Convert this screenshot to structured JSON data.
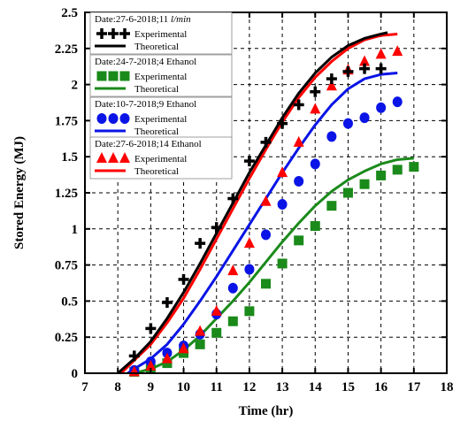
{
  "chart_data": {
    "type": "line",
    "xlabel": "Time (hr)",
    "ylabel": "Stored Energy (MJ)",
    "xlim": [
      7,
      18
    ],
    "ylim": [
      0,
      2.5
    ],
    "x_ticks": [
      "7",
      "8",
      "9",
      "10",
      "11",
      "12",
      "13",
      "14",
      "15",
      "16",
      "17",
      "18"
    ],
    "y_ticks": [
      "0",
      "0.25",
      "0.5",
      "0.75",
      "1",
      "1.25",
      "1.5",
      "1.75",
      "2",
      "2.25",
      "2.5"
    ],
    "grid": "dashed",
    "legend_placement": "top-left",
    "groups": [
      {
        "title": "Date:27-6-2018;11 ",
        "title_italic": "l/min",
        "color": "#000000",
        "experimental_label": "Experimental",
        "theoretical_label": "Theoretical",
        "marker": "plus",
        "experimental": {
          "x": [
            8.5,
            9,
            9.5,
            10,
            10.5,
            11,
            11.5,
            12,
            12.5,
            13,
            13.5,
            14,
            14.5,
            15,
            15.5,
            16
          ],
          "y": [
            0.12,
            0.31,
            0.49,
            0.65,
            0.9,
            1.01,
            1.21,
            1.47,
            1.6,
            1.73,
            1.86,
            1.95,
            2.04,
            2.09,
            2.11,
            2.11
          ]
        },
        "theoretical": {
          "x": [
            8,
            8.5,
            9,
            9.5,
            10,
            10.5,
            11,
            11.5,
            12,
            12.5,
            13,
            13.5,
            14,
            14.5,
            15,
            15.5,
            16,
            16.2
          ],
          "y": [
            0,
            0.1,
            0.22,
            0.38,
            0.56,
            0.76,
            0.97,
            1.18,
            1.39,
            1.58,
            1.77,
            1.94,
            2.08,
            2.19,
            2.27,
            2.32,
            2.35,
            2.36
          ]
        }
      },
      {
        "title": "Date:24-7-2018;4 Ethanol",
        "title_italic": "",
        "color": "#1a8a1a",
        "experimental_label": "Experimental",
        "theoretical_label": "Theoretical",
        "marker": "square",
        "experimental": {
          "x": [
            8.5,
            9,
            9.5,
            10,
            10.5,
            11,
            11.5,
            12,
            12.5,
            13,
            13.5,
            14,
            14.5,
            15,
            15.5,
            16,
            16.5,
            17
          ],
          "y": [
            0.01,
            0.03,
            0.07,
            0.14,
            0.2,
            0.28,
            0.36,
            0.43,
            0.62,
            0.76,
            0.92,
            1.02,
            1.16,
            1.25,
            1.31,
            1.37,
            1.41,
            1.43
          ]
        },
        "theoretical": {
          "x": [
            8.5,
            9,
            9.5,
            10,
            10.5,
            11,
            11.5,
            12,
            12.5,
            13,
            13.5,
            14,
            14.5,
            15,
            15.5,
            16,
            16.5,
            17
          ],
          "y": [
            0,
            0.03,
            0.08,
            0.16,
            0.26,
            0.38,
            0.5,
            0.63,
            0.77,
            0.91,
            1.04,
            1.16,
            1.26,
            1.34,
            1.4,
            1.45,
            1.48,
            1.49
          ]
        }
      },
      {
        "title": "Date:10-7-2018;9 Ethanol",
        "title_italic": "",
        "color": "#0a14e6",
        "experimental_label": "Experimental",
        "theoretical_label": "Theoretical",
        "marker": "circle",
        "experimental": {
          "x": [
            8.5,
            9,
            9.5,
            10,
            10.5,
            11,
            11.5,
            12,
            12.5,
            13,
            13.5,
            14,
            14.5,
            15,
            15.5,
            16,
            16.5
          ],
          "y": [
            0.02,
            0.08,
            0.14,
            0.19,
            0.27,
            0.41,
            0.59,
            0.72,
            0.96,
            1.17,
            1.33,
            1.45,
            1.64,
            1.73,
            1.77,
            1.84,
            1.88
          ]
        },
        "theoretical": {
          "x": [
            8.3,
            8.5,
            9,
            9.5,
            10,
            10.5,
            11,
            11.5,
            12,
            12.5,
            13,
            13.5,
            14,
            14.5,
            15,
            15.5,
            16,
            16.5
          ],
          "y": [
            0,
            0.03,
            0.1,
            0.2,
            0.34,
            0.5,
            0.67,
            0.85,
            1.03,
            1.21,
            1.39,
            1.56,
            1.72,
            1.86,
            1.97,
            2.04,
            2.07,
            2.08
          ]
        }
      },
      {
        "title": "Date:27-6-2018;14 Ethanol",
        "title_italic": "",
        "color": "#ff0000",
        "experimental_label": "Experimental",
        "theoretical_label": "Theoretical",
        "marker": "triangle",
        "experimental": {
          "x": [
            8.5,
            9,
            9.5,
            10,
            10.5,
            11,
            11.5,
            12,
            12.5,
            13,
            13.5,
            14,
            14.5,
            15,
            15.5,
            16,
            16.5
          ],
          "y": [
            0.01,
            0.05,
            0.1,
            0.17,
            0.29,
            0.43,
            0.71,
            0.9,
            1.19,
            1.39,
            1.6,
            1.83,
            1.99,
            2.1,
            2.16,
            2.21,
            2.23
          ]
        },
        "theoretical": {
          "x": [
            8.1,
            8.5,
            9,
            9.5,
            10,
            10.5,
            11,
            11.5,
            12,
            12.5,
            13,
            13.5,
            14,
            14.5,
            15,
            15.5,
            16,
            16.5
          ],
          "y": [
            0,
            0.09,
            0.2,
            0.35,
            0.52,
            0.72,
            0.93,
            1.14,
            1.35,
            1.55,
            1.74,
            1.91,
            2.05,
            2.16,
            2.25,
            2.31,
            2.34,
            2.35
          ]
        }
      }
    ]
  }
}
